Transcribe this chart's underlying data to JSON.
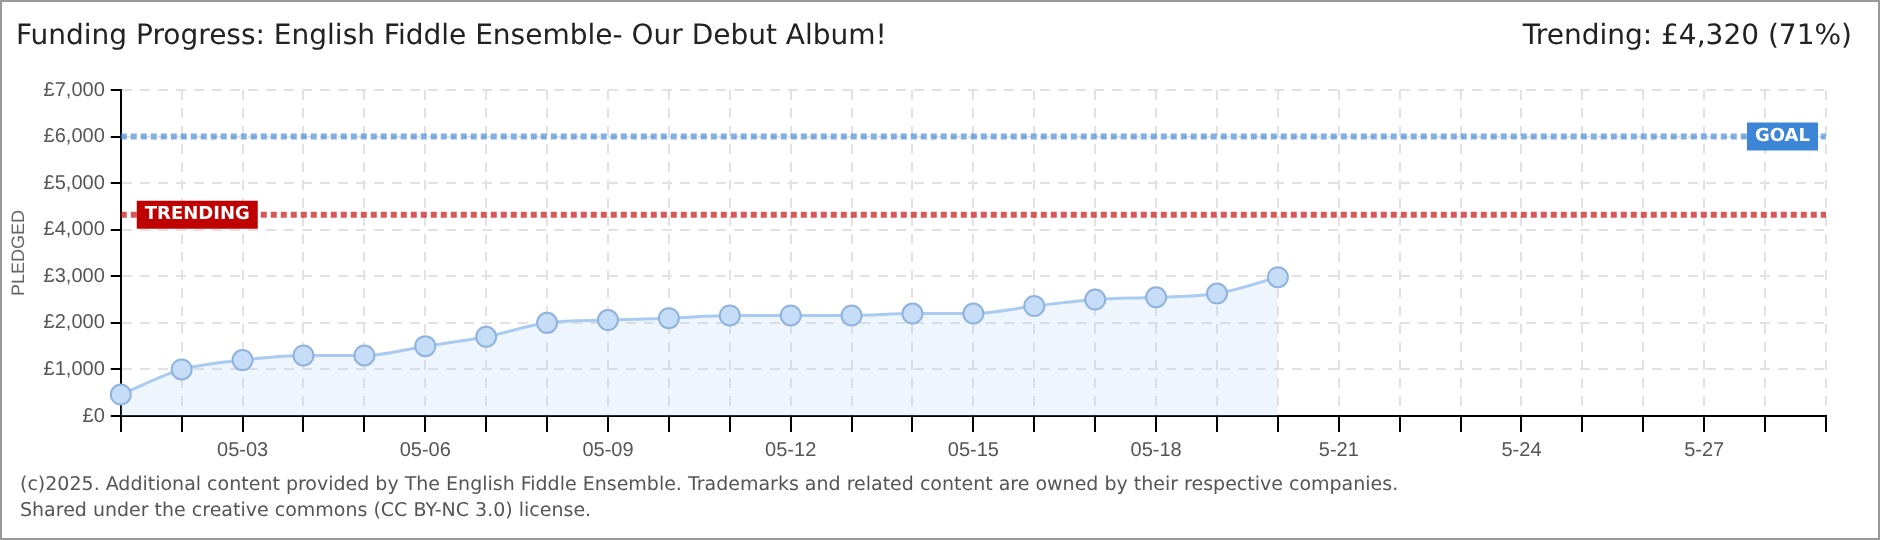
{
  "chart_data": {
    "type": "area",
    "title": "Funding Progress: English Fiddle Ensemble- Our Debut Album!",
    "subtitle": "Trending:  £4,320 (71%)",
    "ylabel": "PLEDGED",
    "categories": [
      null,
      null,
      "05-03",
      null,
      null,
      "05-06",
      null,
      null,
      "05-09",
      null,
      null,
      "05-12",
      null,
      null,
      "05-15",
      null,
      null,
      "05-18",
      null,
      null,
      "5-21",
      null,
      null,
      "5-24",
      null,
      null,
      "5-27",
      null,
      null
    ],
    "series": [
      {
        "color": "#a9cbf2",
        "values": [
          460,
          1000,
          1200,
          1300,
          1300,
          1500,
          1700,
          2000,
          2060,
          2100,
          2160,
          2160,
          2160,
          2200,
          2200,
          2360,
          2500,
          2550,
          2630,
          2980,
          null,
          null,
          null,
          null,
          null,
          null,
          null,
          null,
          null
        ]
      }
    ],
    "ylim": [
      0,
      7000
    ],
    "yticks": [
      {
        "value": 0,
        "label": "£0"
      },
      {
        "value": 1000,
        "label": "£1,000"
      },
      {
        "value": 2000,
        "label": "£2,000"
      },
      {
        "value": 3000,
        "label": "£3,000"
      },
      {
        "value": 4000,
        "label": "£4,000"
      },
      {
        "value": 5000,
        "label": "£5,000"
      },
      {
        "value": 6000,
        "label": "£6,000"
      },
      {
        "value": 7000,
        "label": "£7,000"
      }
    ],
    "ref_lines": [
      {
        "axis": "y",
        "value": 6000,
        "label": "GOAL",
        "color": "#3d85d6",
        "line_style": "dotted"
      },
      {
        "axis": "y",
        "value": 4320,
        "label": "TRENDING",
        "color": "#c00000",
        "line_style": "dotted"
      }
    ],
    "annotations": [
      "(c)2025. Additional content provided by The English Fiddle Ensemble. Trademarks and related content are owned by their respective companies.",
      "Shared under the creative commons (CC BY-NC 3.0) license."
    ],
    "grid": true,
    "legend": false,
    "marker": "circle",
    "line_style": "solid"
  }
}
